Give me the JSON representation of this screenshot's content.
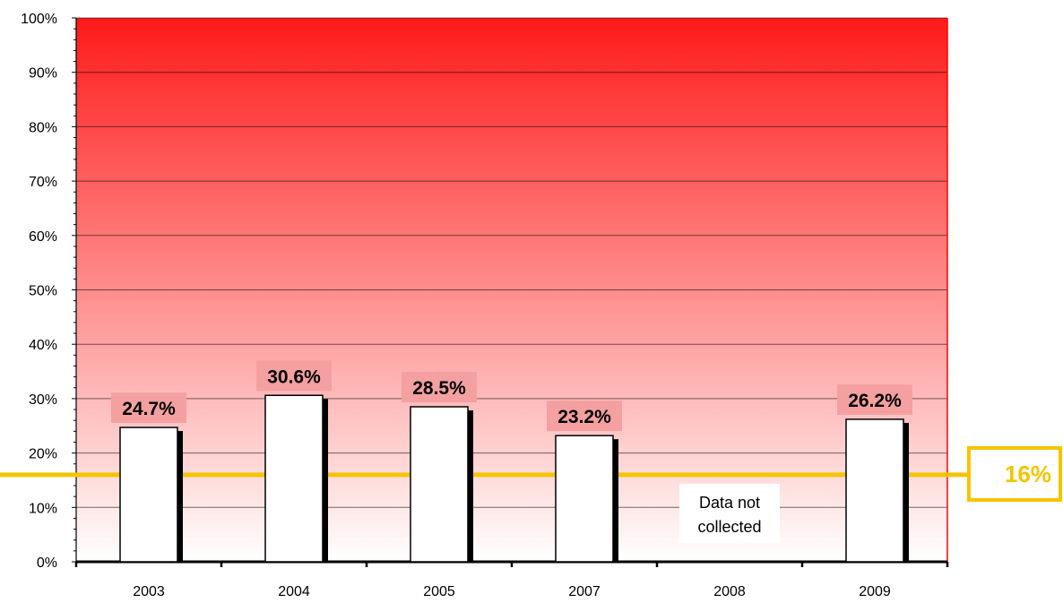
{
  "chart_data": {
    "type": "bar",
    "categories": [
      "2003",
      "2004",
      "2005",
      "2007",
      "2008",
      "2009"
    ],
    "values": [
      24.7,
      30.6,
      28.5,
      23.2,
      null,
      26.2
    ],
    "value_labels": [
      "24.7%",
      "30.6%",
      "28.5%",
      "23.2%",
      "",
      "26.2%"
    ],
    "ylim": [
      0,
      100
    ],
    "yticks": [
      "0%",
      "10%",
      "20%",
      "30%",
      "40%",
      "50%",
      "60%",
      "70%",
      "80%",
      "90%",
      "100%"
    ],
    "grid": true,
    "target": {
      "value": 16,
      "label": "16%"
    },
    "missing_note": {
      "category": "2008",
      "text_line1": "Data not",
      "text_line2": "collected"
    },
    "colors": {
      "plot_top": "#ff1a1a",
      "plot_bottom": "#ffffff",
      "bar_fill": "#ffffff",
      "bar_shadow": "#000000",
      "label_box": "#f4a0a0",
      "target_line": "#f5c400",
      "target_text": "#f5c400",
      "plot_border": "#ff0000"
    }
  }
}
